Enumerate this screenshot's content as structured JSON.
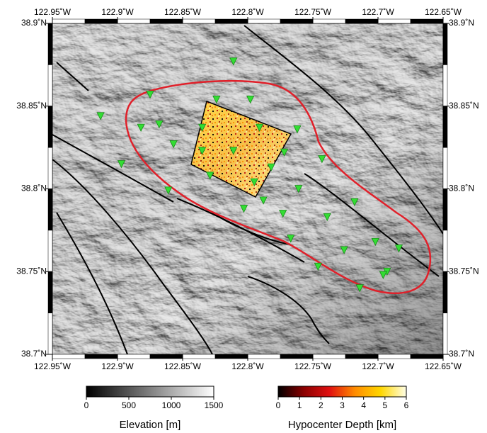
{
  "map": {
    "xlim": [
      -122.95,
      -122.65
    ],
    "ylim": [
      38.7,
      38.9
    ],
    "xticks": [
      {
        "value": -122.95,
        "label": "122.95˚W"
      },
      {
        "value": -122.9,
        "label": "122.9˚W"
      },
      {
        "value": -122.85,
        "label": "122.85˚W"
      },
      {
        "value": -122.8,
        "label": "122.8˚W"
      },
      {
        "value": -122.75,
        "label": "122.75˚W"
      },
      {
        "value": -122.7,
        "label": "122.7˚W"
      },
      {
        "value": -122.65,
        "label": "122.65˚W"
      }
    ],
    "yticks": [
      {
        "value": 38.7,
        "label": "38.7˚N"
      },
      {
        "value": 38.75,
        "label": "38.75˚N"
      },
      {
        "value": 38.8,
        "label": "38.8˚N"
      },
      {
        "value": 38.85,
        "label": "38.85˚N"
      },
      {
        "value": 38.9,
        "label": "38.9˚N"
      }
    ],
    "stations": {
      "color": "#33dd33",
      "lon": [
        -122.811,
        -122.875,
        -122.824,
        -122.798,
        -122.913,
        -122.882,
        -122.868,
        -122.835,
        -122.791,
        -122.762,
        -122.857,
        -122.835,
        -122.811,
        -122.772,
        -122.743,
        -122.897,
        -122.829,
        -122.782,
        -122.795,
        -122.861,
        -122.761,
        -122.788,
        -122.803,
        -122.718,
        -122.773,
        -122.739,
        -122.767,
        -122.702,
        -122.684,
        -122.726,
        -122.746,
        -122.693,
        -122.696,
        -122.714
      ],
      "lat": [
        38.877,
        38.857,
        38.854,
        38.854,
        38.844,
        38.837,
        38.839,
        38.837,
        38.837,
        38.836,
        38.827,
        38.823,
        38.823,
        38.822,
        38.818,
        38.815,
        38.808,
        38.813,
        38.804,
        38.799,
        38.8,
        38.793,
        38.788,
        38.792,
        38.785,
        38.783,
        38.77,
        38.768,
        38.764,
        38.763,
        38.753,
        38.75,
        38.748,
        38.74
      ]
    },
    "colorbars": [
      {
        "label": "Elevation [m]",
        "lim": [
          0,
          1500
        ],
        "ticks": [
          0,
          500,
          1000,
          1500
        ],
        "colors": [
          "#000000",
          "#808080",
          "#ffffff"
        ]
      },
      {
        "label": "Hypocenter Depth [km]",
        "lim": [
          0,
          6
        ],
        "ticks": [
          0,
          1,
          2,
          3,
          4,
          5,
          6
        ],
        "colors": [
          "#000000",
          "#8b0000",
          "#e01010",
          "#ff8c00",
          "#ffd700",
          "#ffffe8"
        ]
      }
    ]
  }
}
